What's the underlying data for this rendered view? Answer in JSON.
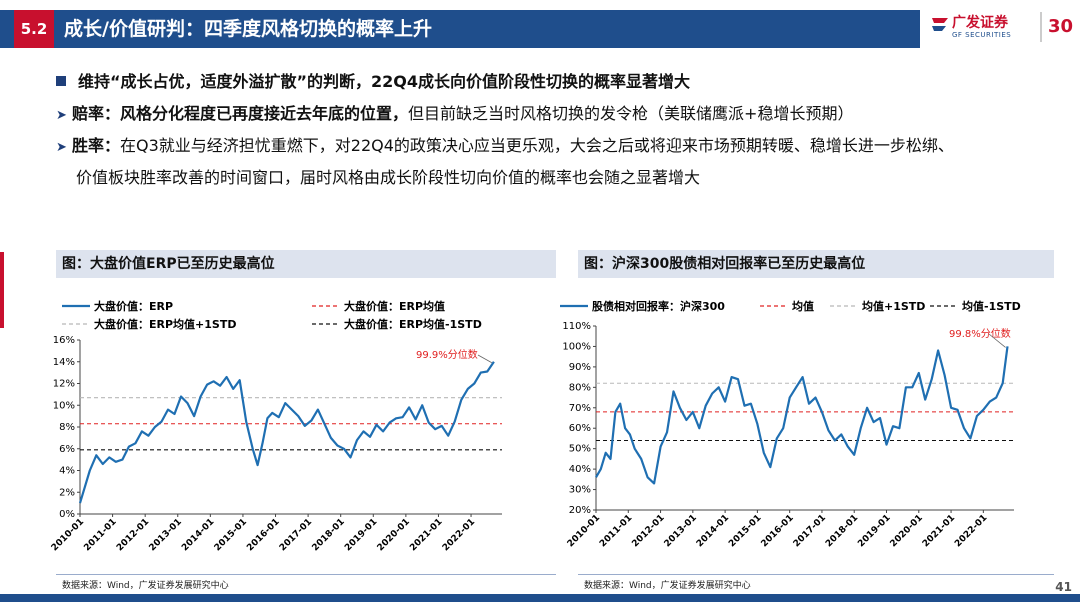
{
  "header": {
    "section_number": "5.2",
    "title": "成长/价值研判：四季度风格切换的概率上升",
    "logo_text": "广发证券",
    "logo_sub": "GF SECURITIES",
    "logo_badge": "30"
  },
  "bullets": {
    "main": "维持“成长占优，适度外溢扩散”的判断，22Q4成长向价值阶段性切换的概率显著增大",
    "odds_label": "赔率：",
    "odds_text": "风格分化程度已再度接近去年底的位置，",
    "odds_rest": "但目前缺乏当时风格切换的发令枪（美联储鹰派+稳增长预期）",
    "win_label": "胜率：",
    "win_text": "在Q3就业与经济担忧重燃下，对22Q4的政策决心应当更乐观，大会之后或将迎来市场预期转暖、稳增长进一步松绑、",
    "win_text2": "价值板块胜率改善的时间窗口，届时风格由成长阶段性切向价值的概率也会随之显著增大"
  },
  "left_panel": {
    "title": "图：大盘价值ERP已至历史最高位",
    "source": "数据来源：Wind，广发证券发展研究中心"
  },
  "right_panel": {
    "title": "图：沪深300股债相对回报率已至历史最高位",
    "source": "数据来源：Wind，广发证券发展研究中心"
  },
  "page_number": "41",
  "chart_data": [
    {
      "type": "line",
      "legend": [
        "大盘价值：ERP",
        "大盘价值：ERP均值",
        "大盘价值：ERP均值+1STD",
        "大盘价值：ERP均值-1STD"
      ],
      "x_ticks": [
        "2010-01",
        "2011-01",
        "2012-01",
        "2013-01",
        "2014-01",
        "2015-01",
        "2016-01",
        "2017-01",
        "2018-01",
        "2019-01",
        "2020-01",
        "2021-01",
        "2022-01"
      ],
      "y_ticks": [
        "0%",
        "2%",
        "4%",
        "6%",
        "8%",
        "10%",
        "12%",
        "14%",
        "16%"
      ],
      "ylim": [
        0,
        16
      ],
      "annotation": "99.9%分位数",
      "reference_lines": {
        "mean": 8.3,
        "plus_1std": 10.7,
        "minus_1std": 5.9
      },
      "series": [
        {
          "name": "大盘价值：ERP",
          "x_year": [
            2010.0,
            2010.15,
            2010.3,
            2010.5,
            2010.7,
            2010.9,
            2011.1,
            2011.3,
            2011.5,
            2011.7,
            2011.9,
            2012.1,
            2012.3,
            2012.5,
            2012.7,
            2012.9,
            2013.1,
            2013.3,
            2013.5,
            2013.7,
            2013.9,
            2014.1,
            2014.3,
            2014.5,
            2014.7,
            2014.9,
            2015.1,
            2015.3,
            2015.45,
            2015.6,
            2015.75,
            2015.9,
            2016.1,
            2016.3,
            2016.5,
            2016.7,
            2016.9,
            2017.1,
            2017.3,
            2017.5,
            2017.7,
            2017.9,
            2018.1,
            2018.3,
            2018.5,
            2018.7,
            2018.9,
            2019.1,
            2019.3,
            2019.5,
            2019.7,
            2019.9,
            2020.1,
            2020.3,
            2020.5,
            2020.7,
            2020.9,
            2021.1,
            2021.3,
            2021.5,
            2021.7,
            2021.9,
            2022.1,
            2022.3,
            2022.5,
            2022.7
          ],
          "values": [
            1.0,
            2.5,
            4.0,
            5.4,
            4.6,
            5.2,
            4.8,
            5.0,
            6.2,
            6.5,
            7.6,
            7.2,
            8.0,
            8.5,
            9.6,
            9.2,
            10.8,
            10.2,
            9.0,
            10.8,
            11.9,
            12.2,
            11.8,
            12.6,
            11.5,
            12.3,
            8.5,
            6.0,
            4.5,
            6.5,
            8.8,
            9.3,
            8.9,
            10.2,
            9.6,
            9.0,
            8.1,
            8.6,
            9.6,
            8.3,
            7.0,
            6.3,
            6.0,
            5.2,
            6.8,
            7.6,
            7.1,
            8.2,
            7.6,
            8.4,
            8.8,
            8.9,
            9.8,
            8.7,
            10.0,
            8.4,
            7.8,
            8.1,
            7.2,
            8.5,
            10.5,
            11.5,
            12.0,
            13.0,
            13.1,
            14.0
          ]
        }
      ]
    },
    {
      "type": "line",
      "legend": [
        "股债相对回报率：沪深300",
        "均值",
        "均值+1STD",
        "均值-1STD"
      ],
      "x_ticks": [
        "2010-01",
        "2011-01",
        "2012-01",
        "2013-01",
        "2014-01",
        "2015-01",
        "2016-01",
        "2017-01",
        "2018-01",
        "2019-01",
        "2020-01",
        "2021-01",
        "2022-01"
      ],
      "y_ticks": [
        "20%",
        "30%",
        "40%",
        "50%",
        "60%",
        "70%",
        "80%",
        "90%",
        "100%",
        "110%"
      ],
      "ylim": [
        20,
        110
      ],
      "annotation": "99.8%分位数",
      "reference_lines": {
        "mean": 68.0,
        "plus_1std": 82.0,
        "minus_1std": 54.0
      },
      "series": [
        {
          "name": "股债相对回报率：沪深300",
          "x_year": [
            2010.0,
            2010.15,
            2010.3,
            2010.45,
            2010.6,
            2010.75,
            2010.9,
            2011.05,
            2011.2,
            2011.4,
            2011.6,
            2011.8,
            2012.0,
            2012.2,
            2012.4,
            2012.6,
            2012.8,
            2013.0,
            2013.2,
            2013.4,
            2013.6,
            2013.8,
            2014.0,
            2014.2,
            2014.4,
            2014.6,
            2014.8,
            2015.0,
            2015.2,
            2015.4,
            2015.6,
            2015.8,
            2016.0,
            2016.2,
            2016.4,
            2016.6,
            2016.8,
            2017.0,
            2017.2,
            2017.4,
            2017.6,
            2017.8,
            2018.0,
            2018.2,
            2018.4,
            2018.6,
            2018.8,
            2019.0,
            2019.2,
            2019.4,
            2019.6,
            2019.8,
            2020.0,
            2020.2,
            2020.4,
            2020.6,
            2020.8,
            2021.0,
            2021.2,
            2021.4,
            2021.6,
            2021.8,
            2022.0,
            2022.2,
            2022.4,
            2022.6,
            2022.75
          ],
          "values": [
            36,
            40,
            48,
            45,
            68,
            72,
            60,
            57,
            50,
            45,
            36,
            33,
            51,
            58,
            78,
            70,
            64,
            68,
            60,
            71,
            77,
            80,
            73,
            85,
            84,
            71,
            72,
            62,
            48,
            41,
            55,
            60,
            75,
            80,
            85,
            72,
            75,
            68,
            59,
            54,
            57,
            51,
            47,
            60,
            70,
            63,
            65,
            52,
            61,
            60,
            80,
            80,
            87,
            74,
            84,
            98,
            86,
            70,
            69,
            60,
            55,
            66,
            69,
            73,
            75,
            82,
            100
          ]
        }
      ]
    }
  ]
}
